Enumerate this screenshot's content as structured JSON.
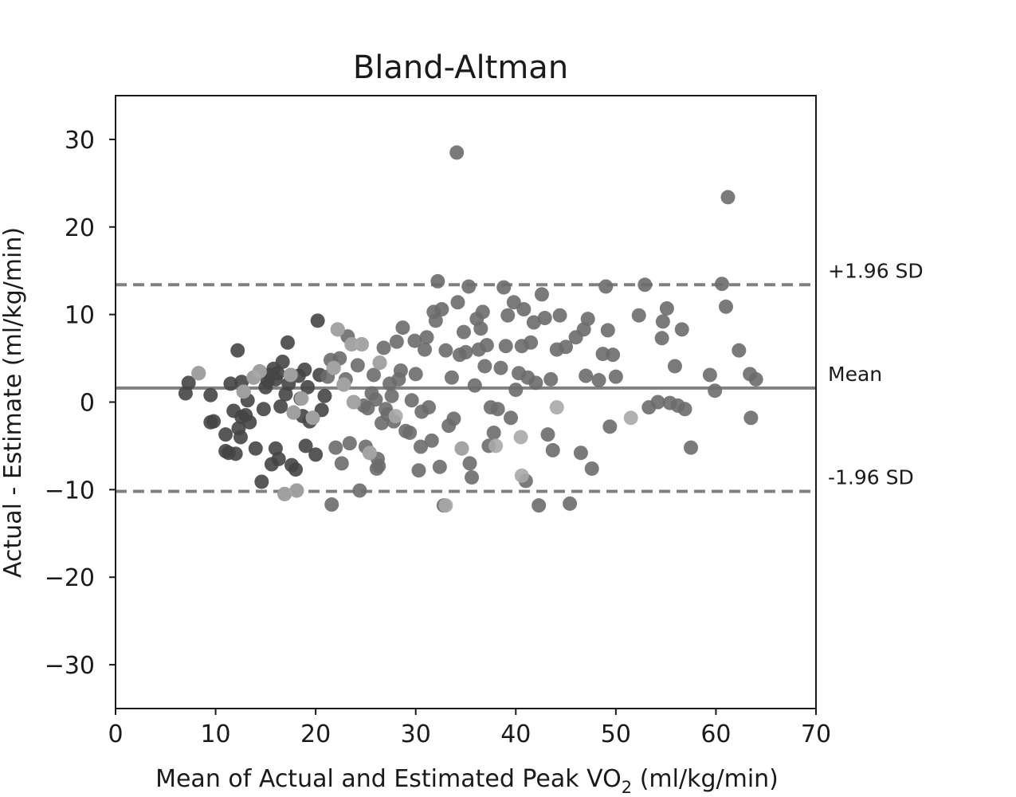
{
  "chart_data": {
    "type": "scatter",
    "title": "Bland-Altman",
    "xlabel_main": "Mean of Actual and Estimated Peak VO",
    "xlabel_sub": "2",
    "xlabel_tail": " (ml/kg/min)",
    "ylabel": "Actual - Estimate (ml/kg/min)",
    "xlim": [
      0,
      70
    ],
    "ylim": [
      -35,
      35
    ],
    "x_ticks": [
      0,
      10,
      20,
      30,
      40,
      50,
      60,
      70
    ],
    "x_tick_labels": [
      "0",
      "10",
      "20",
      "30",
      "40",
      "50",
      "60",
      "70"
    ],
    "y_ticks": [
      30,
      20,
      10,
      0,
      -10,
      -20,
      -30
    ],
    "y_tick_labels": [
      "30",
      "20",
      "10",
      "0",
      "−10",
      "−20",
      "−30"
    ],
    "grid": false,
    "reference_lines": [
      {
        "label": "+1.96 SD",
        "y": 13.4,
        "style": "dashed"
      },
      {
        "label": "Mean",
        "y": 1.6,
        "style": "solid"
      },
      {
        "label": "-1.96 SD",
        "y": -10.2,
        "style": "dashed"
      }
    ],
    "colors": {
      "dark": "#454545",
      "mid": "#6b6b6b",
      "light": "#a9a9a9",
      "line": "#808080"
    },
    "points": [
      [
        7,
        1
      ],
      [
        7.3,
        2.2
      ],
      [
        8.3,
        3.3
      ],
      [
        9.5,
        0.8
      ],
      [
        9.5,
        -2.3
      ],
      [
        9.8,
        -2.2
      ],
      [
        11,
        -3.7
      ],
      [
        11,
        -5.6
      ],
      [
        11.3,
        -5.8
      ],
      [
        11.5,
        2.1
      ],
      [
        11.8,
        -1
      ],
      [
        12,
        -5.9
      ],
      [
        12.2,
        5.9
      ],
      [
        12.3,
        -3
      ],
      [
        12.5,
        -4
      ],
      [
        12.6,
        2.3
      ],
      [
        12.6,
        -1.7
      ],
      [
        12.8,
        1.2
      ],
      [
        13,
        -1.5
      ],
      [
        13.2,
        0.2
      ],
      [
        13.4,
        -2.3
      ],
      [
        13.8,
        2.8
      ],
      [
        14,
        -5.3
      ],
      [
        14.4,
        3.5
      ],
      [
        14.6,
        -9.1
      ],
      [
        14.8,
        -0.8
      ],
      [
        15,
        1.7
      ],
      [
        15.2,
        2.4
      ],
      [
        15.4,
        3.1
      ],
      [
        15.6,
        -7.1
      ],
      [
        15.8,
        3.8
      ],
      [
        16,
        2.6
      ],
      [
        16,
        -5.3
      ],
      [
        16.2,
        3.3
      ],
      [
        16.3,
        -6.5
      ],
      [
        16.5,
        -0.5
      ],
      [
        16.7,
        4.6
      ],
      [
        16.9,
        -10.5
      ],
      [
        17,
        0.9
      ],
      [
        17.2,
        6.8
      ],
      [
        17.3,
        2.1
      ],
      [
        17.5,
        3.1
      ],
      [
        17.6,
        -7.2
      ],
      [
        17.8,
        -1.2
      ],
      [
        18,
        -7.7
      ],
      [
        18.1,
        -10.1
      ],
      [
        18.3,
        3
      ],
      [
        18.5,
        0.4
      ],
      [
        18.7,
        -1.6
      ],
      [
        18.9,
        3.7
      ],
      [
        19,
        -5
      ],
      [
        19.2,
        1.7
      ],
      [
        19.4,
        -2.2
      ],
      [
        19.7,
        -1.8
      ],
      [
        20,
        -6
      ],
      [
        20.2,
        9.3
      ],
      [
        20.4,
        3.1
      ],
      [
        20.6,
        -0.9
      ],
      [
        20.9,
        0.7
      ],
      [
        21.2,
        2.9
      ],
      [
        21.5,
        4.8
      ],
      [
        21.6,
        -11.7
      ],
      [
        21.8,
        3.9
      ],
      [
        22,
        -5.2
      ],
      [
        22.2,
        8.3
      ],
      [
        22.4,
        5
      ],
      [
        22.6,
        -7
      ],
      [
        22.8,
        2
      ],
      [
        23,
        2.6
      ],
      [
        23.2,
        7.5
      ],
      [
        23.4,
        -4.7
      ],
      [
        23.6,
        6.6
      ],
      [
        23.8,
        0
      ],
      [
        24.2,
        4.2
      ],
      [
        24.4,
        -10.1
      ],
      [
        24.6,
        6.6
      ],
      [
        24.8,
        -0.4
      ],
      [
        25,
        -5.1
      ],
      [
        25.2,
        -0.7
      ],
      [
        25.4,
        -5.8
      ],
      [
        25.6,
        1
      ],
      [
        25.8,
        3.1
      ],
      [
        26,
        0.3
      ],
      [
        26.1,
        -7.6
      ],
      [
        26.2,
        -6.5
      ],
      [
        26.3,
        -7.3
      ],
      [
        26.4,
        4.5
      ],
      [
        26.6,
        -2.4
      ],
      [
        26.8,
        6.2
      ],
      [
        27,
        -0.8
      ],
      [
        27.2,
        -1.4
      ],
      [
        27.4,
        2.1
      ],
      [
        27.6,
        0.7
      ],
      [
        27.8,
        -2.2
      ],
      [
        28.1,
        6.9
      ],
      [
        28.3,
        2.6
      ],
      [
        28.5,
        3.6
      ],
      [
        28.7,
        8.5
      ],
      [
        29,
        -3.3
      ],
      [
        29.4,
        -3.5
      ],
      [
        29.6,
        0.2
      ],
      [
        29.9,
        7
      ],
      [
        30,
        3.2
      ],
      [
        30.3,
        -7.8
      ],
      [
        30.5,
        -5.1
      ],
      [
        30.6,
        -1.1
      ],
      [
        30.9,
        6
      ],
      [
        31.1,
        7.4
      ],
      [
        31.3,
        -0.6
      ],
      [
        31.6,
        -4.4
      ],
      [
        31.8,
        10.3
      ],
      [
        32,
        9.3
      ],
      [
        32.2,
        13.8
      ],
      [
        32.4,
        -7.4
      ],
      [
        32.6,
        10.6
      ],
      [
        32.8,
        -11.8
      ],
      [
        33,
        5.9
      ],
      [
        33.3,
        -2.7
      ],
      [
        33.6,
        2.8
      ],
      [
        33.8,
        -1.9
      ],
      [
        34.1,
        28.5
      ],
      [
        34.2,
        11.4
      ],
      [
        34.4,
        5.4
      ],
      [
        34.6,
        -5.3
      ],
      [
        34.8,
        8
      ],
      [
        35,
        5.7
      ],
      [
        35.3,
        13.2
      ],
      [
        35.4,
        -7
      ],
      [
        35.6,
        -8.6
      ],
      [
        35.9,
        1.9
      ],
      [
        36.1,
        9.5
      ],
      [
        36.3,
        6
      ],
      [
        36.5,
        8.4
      ],
      [
        36.7,
        10.3
      ],
      [
        36.9,
        4.1
      ],
      [
        37.1,
        6.5
      ],
      [
        37.3,
        -5
      ],
      [
        37.5,
        -0.6
      ],
      [
        37.8,
        -3.5
      ],
      [
        38.2,
        -0.8
      ],
      [
        38.5,
        3.9
      ],
      [
        38.8,
        13.1
      ],
      [
        39,
        6.4
      ],
      [
        39.2,
        9.9
      ],
      [
        39.5,
        -1.8
      ],
      [
        39.8,
        11.4
      ],
      [
        40,
        1.4
      ],
      [
        40.3,
        3.3
      ],
      [
        40.6,
        6.4
      ],
      [
        40.8,
        10.6
      ],
      [
        41,
        -9
      ],
      [
        41.2,
        2.8
      ],
      [
        41.5,
        6.8
      ],
      [
        41.8,
        9.1
      ],
      [
        42,
        2.2
      ],
      [
        42.3,
        -11.8
      ],
      [
        42.6,
        12.3
      ],
      [
        42.9,
        9.6
      ],
      [
        43.2,
        -3.7
      ],
      [
        43.5,
        2.6
      ],
      [
        43.7,
        -5.5
      ],
      [
        44.1,
        6
      ],
      [
        44.4,
        9.9
      ],
      [
        45,
        6.3
      ],
      [
        45.4,
        -11.6
      ],
      [
        46,
        7.4
      ],
      [
        46.5,
        -5.8
      ],
      [
        46.8,
        8.3
      ],
      [
        47,
        3
      ],
      [
        47.2,
        9.5
      ],
      [
        47.6,
        -7.6
      ],
      [
        48.3,
        2.5
      ],
      [
        48.7,
        5.5
      ],
      [
        49,
        13.2
      ],
      [
        49.2,
        8.2
      ],
      [
        49.4,
        -2.8
      ],
      [
        49.7,
        5.4
      ],
      [
        50,
        2.9
      ],
      [
        52.3,
        9.9
      ],
      [
        52.9,
        13.4
      ],
      [
        53.3,
        -0.6
      ],
      [
        54.2,
        0
      ],
      [
        54.6,
        7.3
      ],
      [
        54.7,
        9.2
      ],
      [
        55.1,
        10.7
      ],
      [
        55.4,
        -0.1
      ],
      [
        55.9,
        4.1
      ],
      [
        56.2,
        -0.4
      ],
      [
        56.6,
        8.3
      ],
      [
        56.9,
        -0.8
      ],
      [
        57.5,
        -5.2
      ],
      [
        59.4,
        3.1
      ],
      [
        59.9,
        1.3
      ],
      [
        60.6,
        13.5
      ],
      [
        61,
        10.9
      ],
      [
        61.2,
        23.4
      ],
      [
        62.3,
        5.9
      ],
      [
        63.4,
        3.2
      ],
      [
        63.5,
        -1.8
      ],
      [
        64,
        2.6
      ],
      [
        8.3,
        3.3
      ],
      [
        13.8,
        2.8
      ],
      [
        14.4,
        3.5
      ],
      [
        17.8,
        -1.2
      ],
      [
        18.1,
        -10.1
      ],
      [
        18.6,
        0.4
      ],
      [
        19.7,
        -1.8
      ],
      [
        22.2,
        8.3
      ],
      [
        22.8,
        2
      ],
      [
        23.6,
        6.6
      ],
      [
        24.6,
        6.6
      ],
      [
        25.4,
        -5.8
      ],
      [
        26.4,
        4.5
      ],
      [
        28,
        -1.6
      ],
      [
        33,
        -11.8
      ],
      [
        34.6,
        -5.3
      ],
      [
        38,
        -5
      ],
      [
        40.5,
        -4
      ],
      [
        40.6,
        -8.4
      ],
      [
        44.1,
        -0.6
      ],
      [
        51.5,
        -1.8
      ],
      [
        23.8,
        0
      ],
      [
        21.8,
        3.9
      ],
      [
        17.5,
        3.1
      ],
      [
        16.9,
        -10.5
      ],
      [
        12.8,
        1.2
      ]
    ]
  }
}
